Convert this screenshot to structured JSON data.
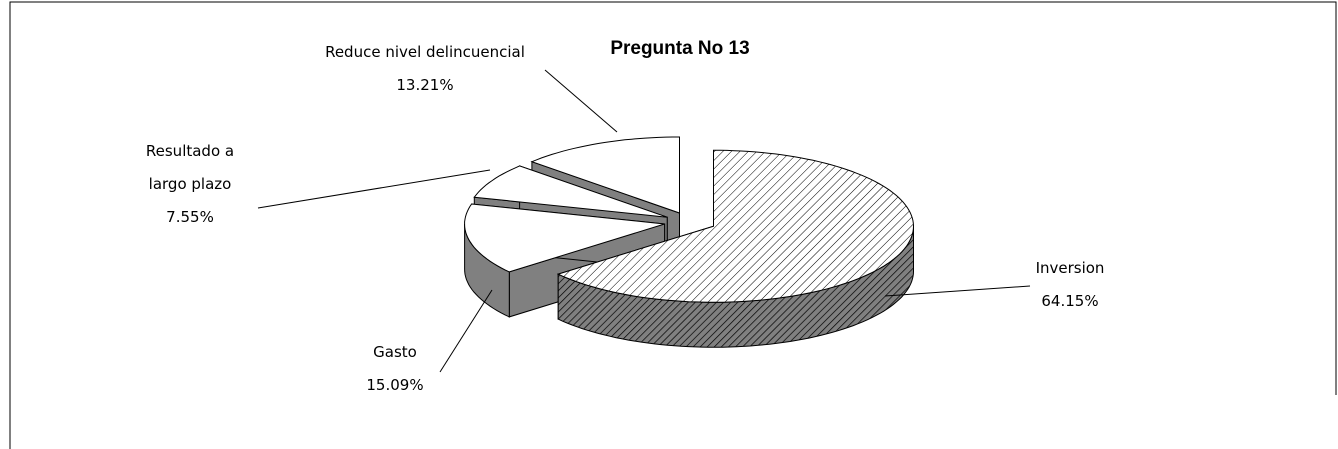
{
  "chart_data": {
    "type": "pie3d",
    "title": "Pregunta No 13",
    "categories": [
      "Inversion",
      "Gasto",
      "Resultado a largo plazo",
      "Reduce nivel delincuencial"
    ],
    "values": [
      64.15,
      15.09,
      7.55,
      13.21
    ],
    "value_labels": [
      "64.15%",
      "15.09%",
      "7.55%",
      "13.21%"
    ],
    "colors": [
      "#ffffff",
      "#ffffff",
      "#ffffff",
      "#ffffff"
    ],
    "side_colors": [
      "#808080",
      "#808080",
      "#808080",
      "#808080"
    ],
    "hatch": [
      true,
      false,
      false,
      false
    ]
  }
}
